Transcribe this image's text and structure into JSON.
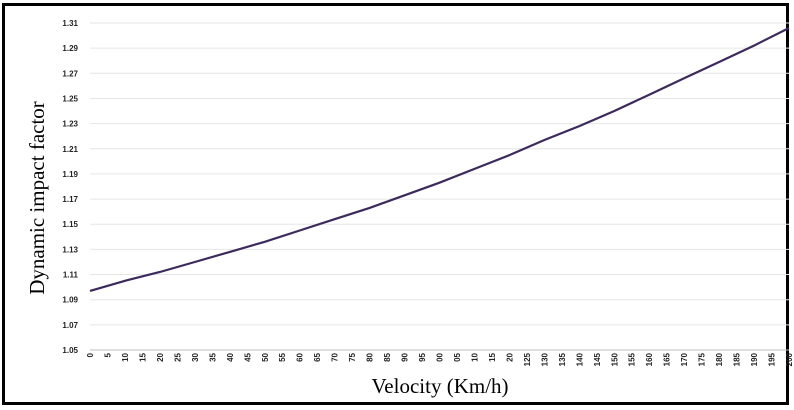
{
  "chart_data": {
    "type": "line",
    "xlabel": "Velocity (Km/h)",
    "ylabel": "Dynamic impact factor",
    "xlim": [
      0,
      200
    ],
    "ylim": [
      1.05,
      1.31
    ],
    "grid": true,
    "line_color": "#3d2a5c",
    "x_tick_labels": [
      "0",
      "5",
      "10",
      "15",
      "20",
      "25",
      "30",
      "35",
      "40",
      "45",
      "50",
      "55",
      "60",
      "65",
      "70",
      "75",
      "80",
      "85",
      "90",
      "95",
      "00",
      "05",
      "10",
      "15",
      "20",
      "125",
      "130",
      "135",
      "140",
      "145",
      "150",
      "155",
      "160",
      "165",
      "170",
      "175",
      "180",
      "185",
      "190",
      "195",
      "200"
    ],
    "y_ticks": [
      1.05,
      1.07,
      1.09,
      1.11,
      1.13,
      1.15,
      1.17,
      1.19,
      1.21,
      1.23,
      1.25,
      1.27,
      1.29,
      1.31
    ],
    "y_tick_labels": [
      "1.05",
      "1.07",
      "1.09",
      "1.11",
      "1.13",
      "1.15",
      "1.17",
      "1.19",
      "1.21",
      "1.23",
      "1.25",
      "1.27",
      "1.29",
      "1.31"
    ],
    "series": [
      {
        "x": [
          0,
          10,
          20,
          30,
          40,
          50,
          60,
          70,
          80,
          90,
          100,
          110,
          120,
          130,
          140,
          150,
          160,
          170,
          180,
          190,
          200
        ],
        "values": [
          1.097,
          1.105,
          1.112,
          1.12,
          1.128,
          1.136,
          1.145,
          1.154,
          1.163,
          1.173,
          1.183,
          1.194,
          1.205,
          1.217,
          1.228,
          1.24,
          1.253,
          1.266,
          1.279,
          1.292,
          1.306
        ]
      }
    ]
  }
}
